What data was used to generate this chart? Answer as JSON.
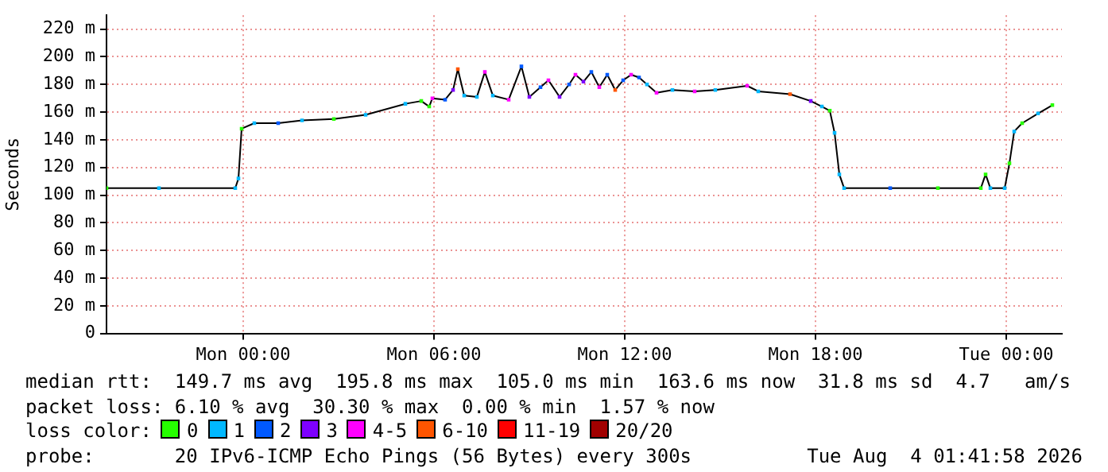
{
  "chart_data": {
    "type": "line",
    "ylabel": "Seconds",
    "legend": "bottom",
    "legend_title": "loss color:",
    "grid": true,
    "marker": "square",
    "xlim": [
      "2026-08-02T19:42",
      "2026-08-04T01:45"
    ],
    "xticks": [
      {
        "value": "2026-08-03T00:00",
        "label": "Mon 00:00"
      },
      {
        "value": "2026-08-03T06:00",
        "label": "Mon 06:00"
      },
      {
        "value": "2026-08-03T12:00",
        "label": "Mon 12:00"
      },
      {
        "value": "2026-08-03T18:00",
        "label": "Mon 18:00"
      },
      {
        "value": "2026-08-04T00:00",
        "label": "Tue 00:00"
      }
    ],
    "ylim": [
      0,
      230
    ],
    "yticks": [
      0,
      {
        "value": 20,
        "label": "20 m"
      },
      {
        "value": 40,
        "label": "40 m"
      },
      {
        "value": 60,
        "label": "60 m"
      },
      {
        "value": 80,
        "label": "80 m"
      },
      {
        "value": 100,
        "label": "100 m"
      },
      {
        "value": 120,
        "label": "120 m"
      },
      {
        "value": 140,
        "label": "140 m"
      },
      {
        "value": 160,
        "label": "160 m"
      },
      {
        "value": 180,
        "label": "180 m"
      },
      {
        "value": 200,
        "label": "200 m"
      },
      {
        "value": 220,
        "label": "220 m"
      }
    ],
    "annotations": [
      "median rtt:  149.7 ms avg  195.8 ms max  105.0 ms min  163.6 ms now  31.8 ms sd  4.7   am/s",
      "packet loss: 6.10 % avg  30.30 % max  0.00 % min  1.57 % now",
      "probe:       20 IPv6-ICMP Echo Pings (56 Bytes) every 300s",
      "Tue Aug  4 01:41:58 2026"
    ],
    "x": [
      "2026-08-02T19:42",
      "2026-08-02T21:21",
      "2026-08-02T23:45",
      "2026-08-02T23:51",
      "2026-08-02T23:57",
      "2026-08-03T00:21",
      "2026-08-03T01:06",
      "2026-08-03T01:51",
      "2026-08-03T02:51",
      "2026-08-03T03:51",
      "2026-08-03T05:06",
      "2026-08-03T05:36",
      "2026-08-03T05:51",
      "2026-08-03T05:57",
      "2026-08-03T06:21",
      "2026-08-03T06:36",
      "2026-08-03T06:45",
      "2026-08-03T06:57",
      "2026-08-03T07:21",
      "2026-08-03T07:36",
      "2026-08-03T07:51",
      "2026-08-03T08:21",
      "2026-08-03T08:45",
      "2026-08-03T09:00",
      "2026-08-03T09:21",
      "2026-08-03T09:36",
      "2026-08-03T09:57",
      "2026-08-03T10:15",
      "2026-08-03T10:27",
      "2026-08-03T10:42",
      "2026-08-03T10:57",
      "2026-08-03T11:12",
      "2026-08-03T11:27",
      "2026-08-03T11:42",
      "2026-08-03T11:57",
      "2026-08-03T12:12",
      "2026-08-03T12:27",
      "2026-08-03T12:42",
      "2026-08-03T13:00",
      "2026-08-03T13:30",
      "2026-08-03T14:12",
      "2026-08-03T14:51",
      "2026-08-03T15:51",
      "2026-08-03T16:12",
      "2026-08-03T17:12",
      "2026-08-03T17:51",
      "2026-08-03T18:12",
      "2026-08-03T18:27",
      "2026-08-03T18:36",
      "2026-08-03T18:45",
      "2026-08-03T18:54",
      "2026-08-03T20:21",
      "2026-08-03T21:51",
      "2026-08-03T23:12",
      "2026-08-03T23:21",
      "2026-08-03T23:30",
      "2026-08-03T23:57",
      "2026-08-04T00:06",
      "2026-08-04T00:15",
      "2026-08-04T00:30",
      "2026-08-04T01:00",
      "2026-08-04T01:27"
    ],
    "series": [
      {
        "color": "#000000",
        "marker": "none",
        "values": [
          105,
          105,
          105,
          112,
          148,
          152,
          152,
          154,
          155,
          158,
          166,
          168,
          164,
          170,
          169,
          176,
          191,
          172,
          171,
          189,
          172,
          169,
          193,
          171,
          178,
          183,
          171,
          180,
          187,
          182,
          189,
          178,
          187,
          176,
          183,
          187,
          185,
          180,
          174,
          176,
          175,
          176,
          179,
          175,
          173,
          168,
          164,
          161,
          145,
          115,
          105,
          105,
          105,
          105,
          115,
          105,
          105,
          123,
          146,
          152,
          159,
          165
        ]
      },
      {
        "type": "scatter",
        "name": "0",
        "color": "#26ff00",
        "x": [
          "2026-08-02T19:42",
          "2026-08-02T23:57",
          "2026-08-03T02:51",
          "2026-08-03T05:36",
          "2026-08-03T05:51",
          "2026-08-03T18:27",
          "2026-08-03T21:51",
          "2026-08-03T23:12",
          "2026-08-03T23:21",
          "2026-08-04T00:06",
          "2026-08-04T00:30",
          "2026-08-04T01:27"
        ],
        "values": [
          105,
          148,
          155,
          168,
          164,
          161,
          105,
          105,
          115,
          123,
          152,
          165
        ]
      },
      {
        "type": "scatter",
        "name": "1",
        "color": "#00b8ff",
        "x": [
          "2026-08-02T21:21",
          "2026-08-02T23:45",
          "2026-08-02T23:51",
          "2026-08-03T00:21",
          "2026-08-03T01:51",
          "2026-08-03T03:51",
          "2026-08-03T05:06",
          "2026-08-03T06:57",
          "2026-08-03T07:21",
          "2026-08-03T07:51",
          "2026-08-03T12:42",
          "2026-08-03T13:30",
          "2026-08-03T14:51",
          "2026-08-03T16:12",
          "2026-08-03T18:12",
          "2026-08-03T18:36",
          "2026-08-03T18:45",
          "2026-08-03T18:54",
          "2026-08-03T23:30",
          "2026-08-03T23:57",
          "2026-08-04T00:15",
          "2026-08-04T01:00"
        ],
        "values": [
          105,
          105,
          112,
          152,
          154,
          158,
          166,
          172,
          171,
          172,
          180,
          176,
          176,
          175,
          164,
          145,
          115,
          105,
          105,
          105,
          146,
          159
        ]
      },
      {
        "type": "scatter",
        "name": "2",
        "color": "#0059ff",
        "x": [
          "2026-08-03T01:06",
          "2026-08-03T06:21",
          "2026-08-03T08:45",
          "2026-08-03T09:21",
          "2026-08-03T10:15",
          "2026-08-03T10:57",
          "2026-08-03T11:27",
          "2026-08-03T11:57",
          "2026-08-03T12:27",
          "2026-08-03T20:21"
        ],
        "values": [
          152,
          169,
          193,
          178,
          180,
          189,
          187,
          183,
          185,
          105
        ]
      },
      {
        "type": "scatter",
        "name": "3",
        "color": "#7e00ff",
        "x": [
          "2026-08-03T06:36",
          "2026-08-03T09:00",
          "2026-08-03T09:57",
          "2026-08-03T10:42",
          "2026-08-03T17:51"
        ],
        "values": [
          176,
          171,
          171,
          182,
          168
        ]
      },
      {
        "type": "scatter",
        "name": "4-5",
        "color": "#ff00ff",
        "x": [
          "2026-08-03T05:57",
          "2026-08-03T07:36",
          "2026-08-03T08:21",
          "2026-08-03T09:36",
          "2026-08-03T10:27",
          "2026-08-03T11:12",
          "2026-08-03T12:12",
          "2026-08-03T13:00",
          "2026-08-03T14:12",
          "2026-08-03T15:51"
        ],
        "values": [
          170,
          189,
          169,
          183,
          187,
          178,
          187,
          174,
          175,
          179
        ]
      },
      {
        "type": "scatter",
        "name": "6-10",
        "color": "#ff5500",
        "x": [
          "2026-08-03T06:45",
          "2026-08-03T11:42",
          "2026-08-03T17:12"
        ],
        "values": [
          191,
          176,
          173
        ]
      },
      {
        "type": "scatter",
        "name": "11-19",
        "color": "#ff0000",
        "values": [
          null,
          null,
          null,
          null,
          null,
          null,
          null,
          null,
          null,
          null,
          null,
          null,
          null,
          null,
          null,
          null,
          null,
          null,
          null,
          null,
          null,
          null,
          null,
          null,
          null,
          null,
          null,
          null,
          null,
          null,
          null,
          null,
          null,
          null,
          null,
          null,
          null,
          null,
          null,
          null,
          null,
          null,
          null,
          null,
          null,
          null,
          null,
          null,
          null,
          null,
          null,
          null,
          null,
          null,
          null,
          null,
          null,
          null,
          null,
          null,
          null,
          null
        ]
      },
      {
        "type": "scatter",
        "name": "20/20",
        "color": "#a10000",
        "values": [
          null,
          null,
          null,
          null,
          null,
          null,
          null,
          null,
          null,
          null,
          null,
          null,
          null,
          null,
          null,
          null,
          null,
          null,
          null,
          null,
          null,
          null,
          null,
          null,
          null,
          null,
          null,
          null,
          null,
          null,
          null,
          null,
          null,
          null,
          null,
          null,
          null,
          null,
          null,
          null,
          null,
          null,
          null,
          null,
          null,
          null,
          null,
          null,
          null,
          null,
          null,
          null,
          null,
          null,
          null,
          null,
          null,
          null,
          null,
          null,
          null,
          null
        ]
      }
    ]
  }
}
